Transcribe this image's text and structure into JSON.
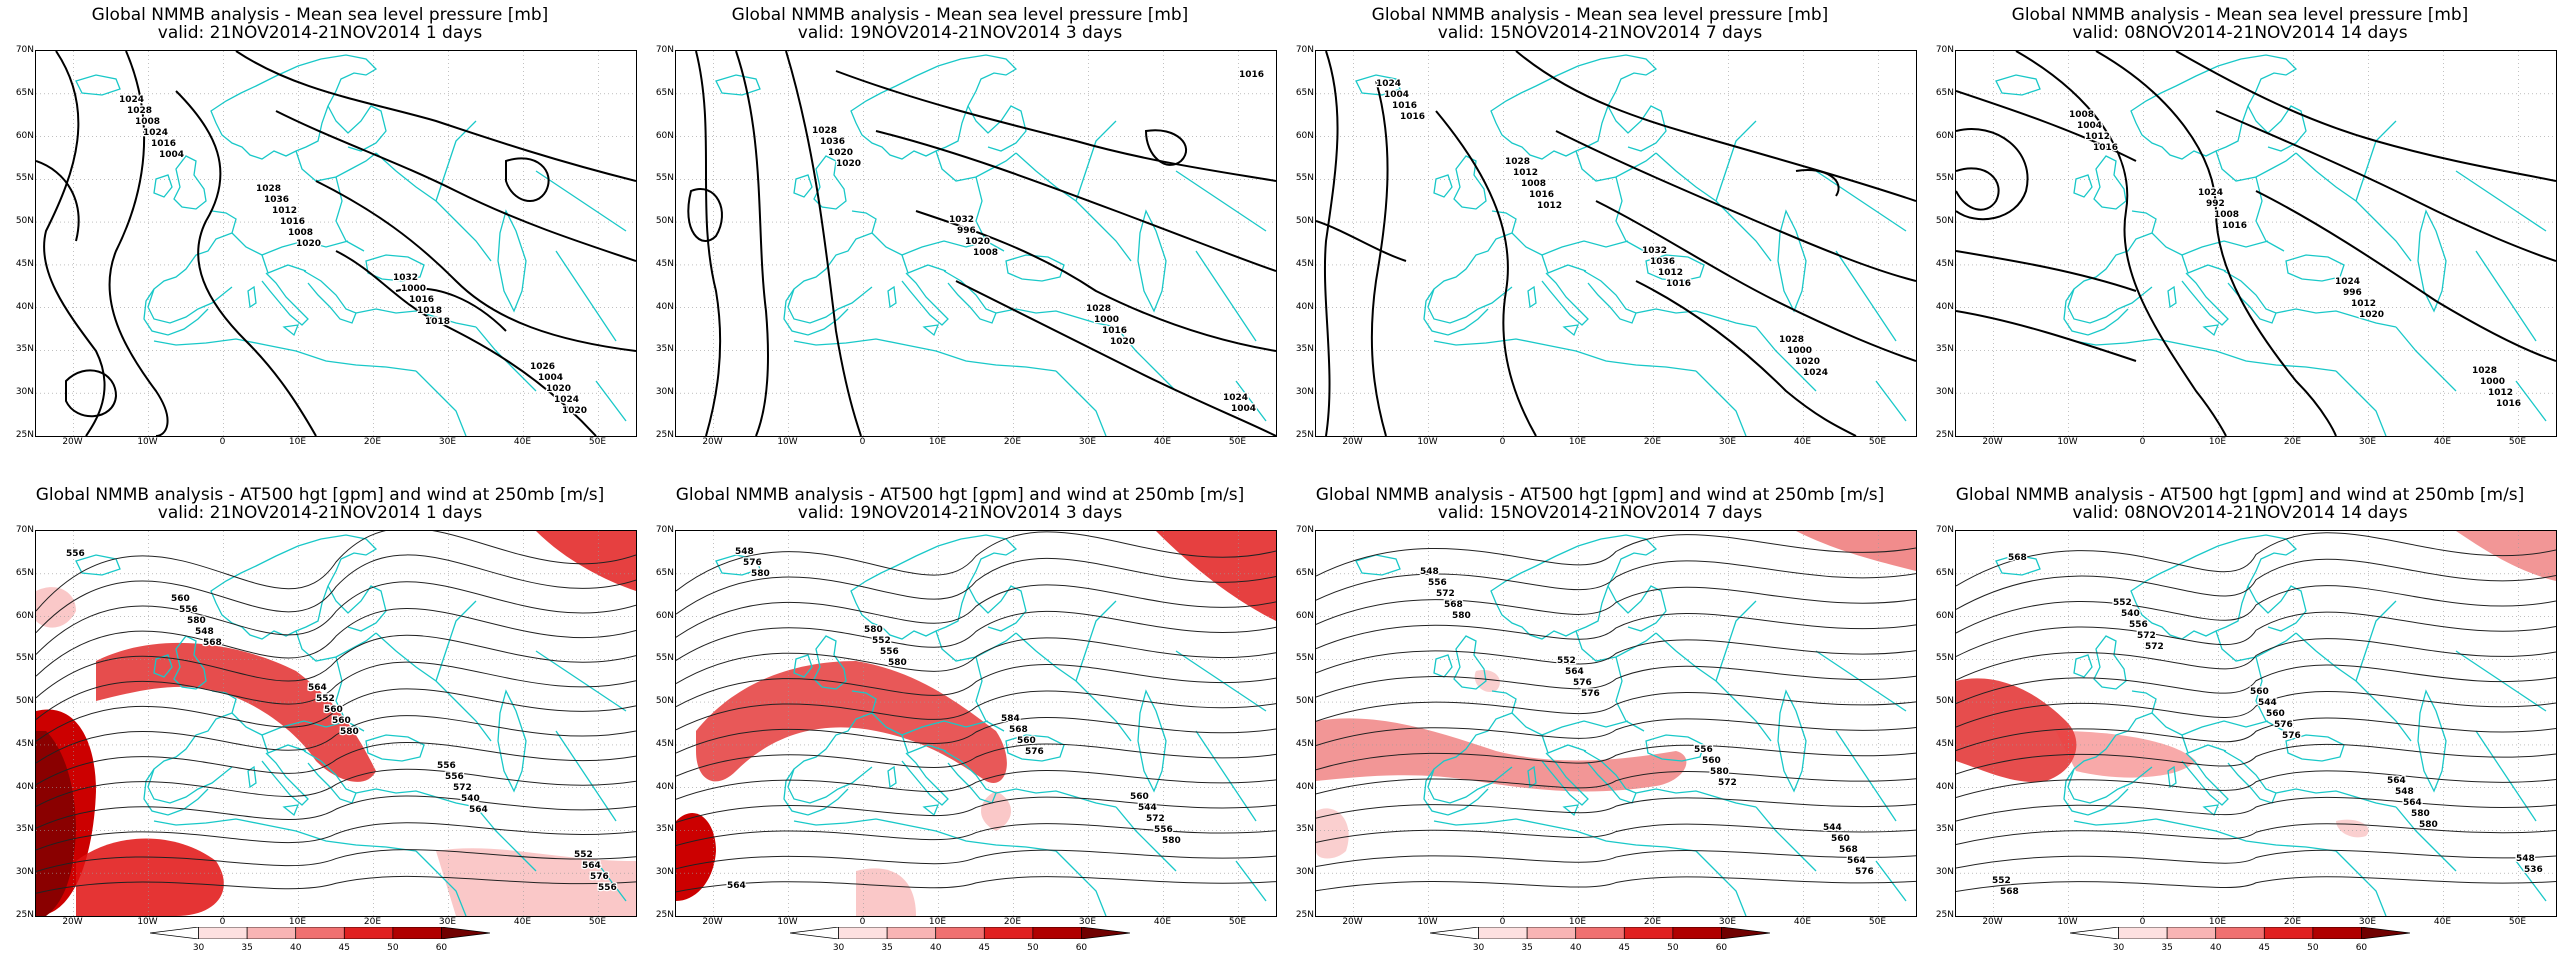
{
  "colors": {
    "coast": "#19c8c8",
    "contour": "#000000",
    "jet": "#e01010"
  },
  "axes": {
    "lat_labels": [
      "70N",
      "65N",
      "60N",
      "55N",
      "50N",
      "45N",
      "40N",
      "35N",
      "30N",
      "25N"
    ],
    "lon_labels": [
      "20W",
      "10W",
      "0",
      "10E",
      "20E",
      "30E",
      "40E",
      "50E"
    ]
  },
  "colorbar": {
    "labels": [
      "30",
      "35",
      "40",
      "45",
      "50",
      "60"
    ]
  },
  "top_row": [
    {
      "title": "Global NMMB analysis - Mean sea level pressure [mb]",
      "valid": "valid:  21NOV2014-21NOV2014   1 days",
      "contour_labels": [
        "1024",
        "1028",
        "1032",
        "1026",
        "1028",
        "1036",
        "1000",
        "1004",
        "1008",
        "1012",
        "1016",
        "1020",
        "1024",
        "1016",
        "1018",
        "1024",
        "1016",
        "1008",
        "1018",
        "1020",
        "1004",
        "1020"
      ]
    },
    {
      "title": "Global NMMB analysis - Mean sea level pressure [mb]",
      "valid": "valid:  19NOV2014-21NOV2014   3 days",
      "contour_labels": [
        "1028",
        "1032",
        "1028",
        "1024",
        "1036",
        "996",
        "1000",
        "1004",
        "1020",
        "1020",
        "1016",
        "1016",
        "1020",
        "1008",
        "1020"
      ]
    },
    {
      "title": "Global NMMB analysis - Mean sea level pressure [mb]",
      "valid": "valid:  15NOV2014-21NOV2014   7 days",
      "contour_labels": [
        "1028",
        "1032",
        "1028",
        "1024",
        "1012",
        "1036",
        "1000",
        "1004",
        "1008",
        "1012",
        "1020",
        "1016",
        "1016",
        "1016",
        "1024",
        "1016",
        "1012"
      ]
    },
    {
      "title": "Global NMMB analysis - Mean sea level pressure [mb]",
      "valid": "valid:  08NOV2014-21NOV2014   14 days",
      "contour_labels": [
        "1024",
        "1024",
        "1028",
        "1008",
        "992",
        "996",
        "1000",
        "1004",
        "1008",
        "1012",
        "1012",
        "1012",
        "1016",
        "1020",
        "1016",
        "1016"
      ]
    }
  ],
  "bottom_row": [
    {
      "title": "Global NMMB analysis - AT500 hgt [gpm] and wind at 250mb [m/s]",
      "valid": "valid:  21NOV2014-21NOV2014   1 days",
      "contour_labels": [
        "556",
        "552",
        "560",
        "564",
        "556",
        "564",
        "556",
        "552",
        "572",
        "576",
        "580",
        "560",
        "540",
        "556",
        "548",
        "560",
        "564",
        "556",
        "568",
        "580"
      ]
    },
    {
      "title": "Global NMMB analysis - AT500 hgt [gpm] and wind at 250mb [m/s]",
      "valid": "valid:  19NOV2014-21NOV2014   3 days",
      "contour_labels": [
        "560",
        "564",
        "580",
        "584",
        "544",
        "548",
        "552",
        "568",
        "572",
        "576",
        "556",
        "560",
        "556",
        "580",
        "580",
        "576",
        "580"
      ]
    },
    {
      "title": "Global NMMB analysis - AT500 hgt [gpm] and wind at 250mb [m/s]",
      "valid": "valid:  15NOV2014-21NOV2014   7 days",
      "contour_labels": [
        "544",
        "548",
        "552",
        "556",
        "560",
        "556",
        "564",
        "560",
        "568",
        "572",
        "576",
        "580",
        "564",
        "568",
        "576",
        "572",
        "576",
        "580"
      ]
    },
    {
      "title": "Global NMMB analysis - AT500 hgt [gpm] and wind at 250mb [m/s]",
      "valid": "valid:  08NOV2014-21NOV2014   14 days",
      "contour_labels": [
        "548",
        "552",
        "560",
        "564",
        "536",
        "540",
        "544",
        "548",
        "552",
        "556",
        "560",
        "564",
        "568",
        "572",
        "576",
        "580",
        "568",
        "572",
        "576",
        "580"
      ]
    }
  ]
}
